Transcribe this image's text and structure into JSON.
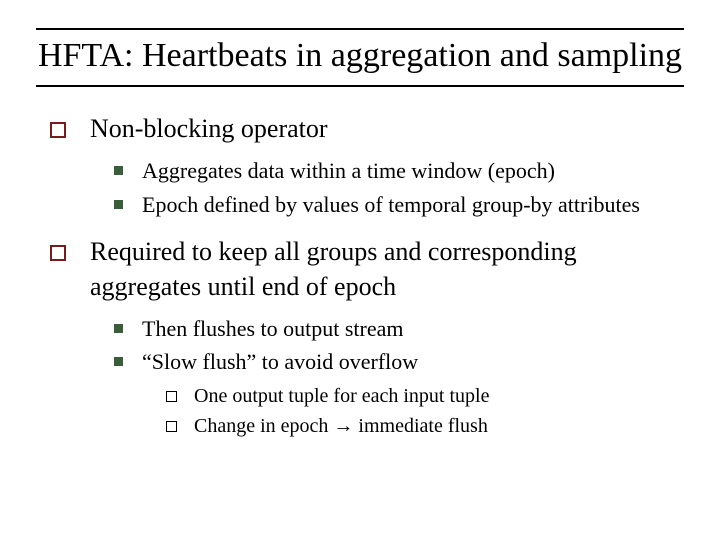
{
  "title": "HFTA: Heartbeats in aggregation and sampling",
  "colors": {
    "bullet_level1_border": "#7a1a1a",
    "bullet_level2_fill": "#3a5d3a",
    "bullet_level3_border": "#000000",
    "rule_color": "#000000",
    "text_color": "#000000",
    "background": "#ffffff"
  },
  "typography": {
    "title_fontsize": 34,
    "level1_fontsize": 26,
    "level2_fontsize": 22,
    "level3_fontsize": 20,
    "font_family": "Times New Roman"
  },
  "items": [
    {
      "text": "Non-blocking operator",
      "children": [
        {
          "text": "Aggregates data within a time window (epoch)"
        },
        {
          "text": "Epoch defined by values of temporal group-by attributes"
        }
      ]
    },
    {
      "text": "Required to keep all groups and corresponding aggregates until end of epoch",
      "children": [
        {
          "text": "Then flushes to output stream"
        },
        {
          "text": "“Slow flush” to avoid overflow",
          "children": [
            {
              "text": "One output tuple for each input tuple"
            },
            {
              "text": "Change in epoch → immediate flush"
            }
          ]
        }
      ]
    }
  ]
}
